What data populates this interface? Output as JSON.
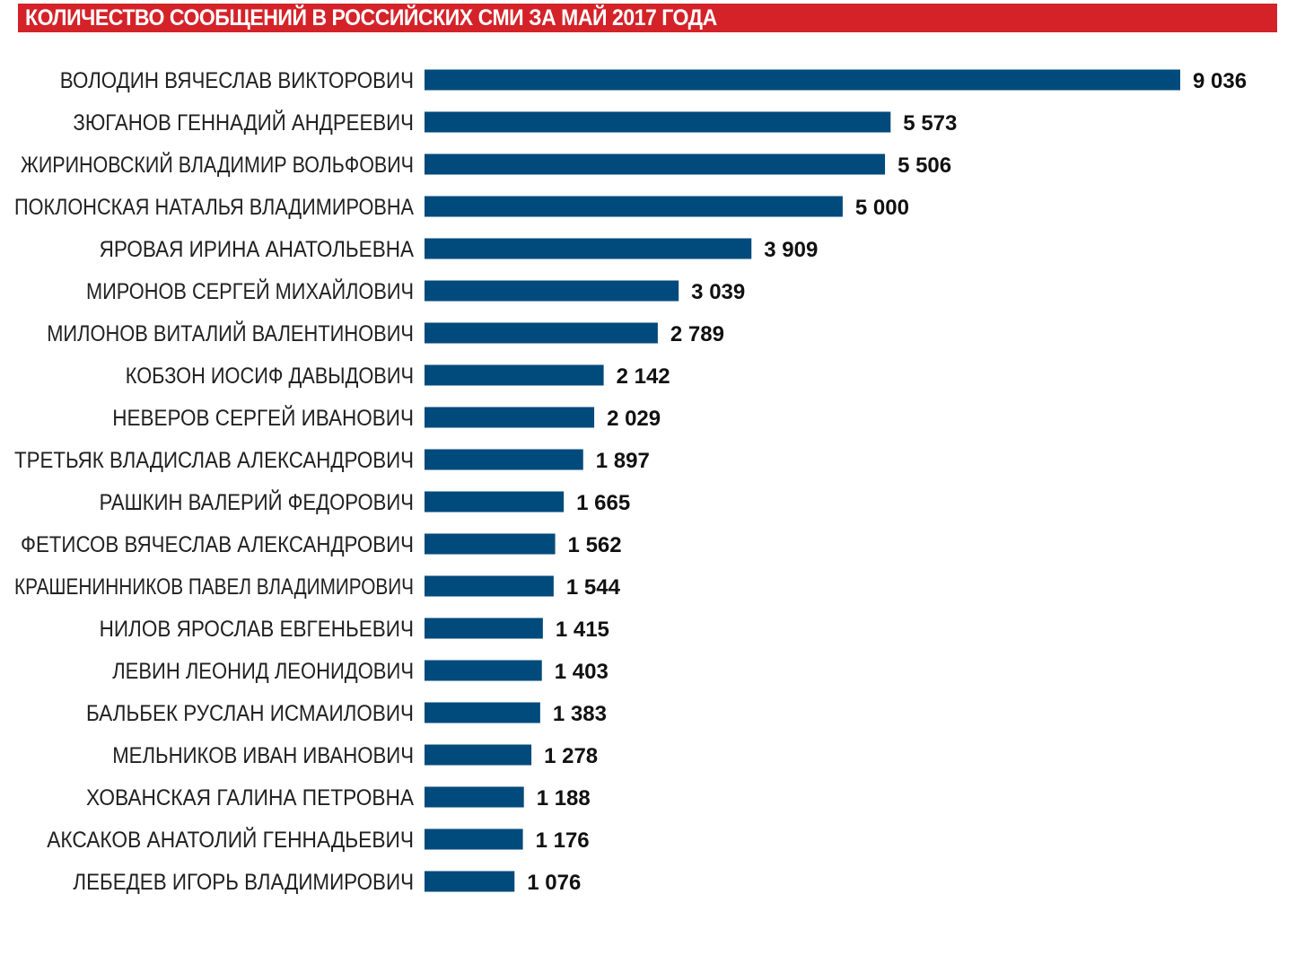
{
  "title": "КОЛИЧЕСТВО СООБЩЕНИЙ В РОССИЙСКИХ СМИ ЗА МАЙ 2017 ГОДА",
  "colors": {
    "title_bg": "#d42229",
    "bar": "#004a7c"
  },
  "chart_data": {
    "type": "bar",
    "orientation": "horizontal",
    "title": "КОЛИЧЕСТВО СООБЩЕНИЙ В РОССИЙСКИХ СМИ ЗА МАЙ 2017 ГОДА",
    "xlabel": "",
    "ylabel": "",
    "grid": false,
    "categories": [
      "ВОЛОДИН ВЯЧЕСЛАВ ВИКТОРОВИЧ",
      "ЗЮГАНОВ ГЕННАДИЙ АНДРЕЕВИЧ",
      "ЖИРИНОВСКИЙ ВЛАДИМИР ВОЛЬФОВИЧ",
      "ПОКЛОНСКАЯ НАТАЛЬЯ ВЛАДИМИРОВНА",
      "ЯРОВАЯ ИРИНА АНАТОЛЬЕВНА",
      "МИРОНОВ СЕРГЕЙ МИХАЙЛОВИЧ",
      "МИЛОНОВ ВИТАЛИЙ ВАЛЕНТИНОВИЧ",
      "КОБЗОН ИОСИФ ДАВЫДОВИЧ",
      "НЕВЕРОВ СЕРГЕЙ ИВАНОВИЧ",
      "ТРЕТЬЯК ВЛАДИСЛАВ АЛЕКСАНДРОВИЧ",
      "РАШКИН ВАЛЕРИЙ ФЕДОРОВИЧ",
      "ФЕТИСОВ ВЯЧЕСЛАВ АЛЕКСАНДРОВИЧ",
      "КРАШЕНИННИКОВ ПАВЕЛ ВЛАДИМИРОВИЧ",
      "НИЛОВ ЯРОСЛАВ ЕВГЕНЬЕВИЧ",
      "ЛЕВИН ЛЕОНИД ЛЕОНИДОВИЧ",
      "БАЛЬБЕК РУСЛАН ИСМАИЛОВИЧ",
      "МЕЛЬНИКОВ ИВАН ИВАНОВИЧ",
      "ХОВАНСКАЯ ГАЛИНА ПЕТРОВНА",
      "АКСАКОВ АНАТОЛИЙ ГЕННАДЬЕВИЧ",
      "ЛЕБЕДЕВ ИГОРЬ ВЛАДИМИРОВИЧ"
    ],
    "values": [
      9036,
      5573,
      5506,
      5000,
      3909,
      3039,
      2789,
      2142,
      2029,
      1897,
      1665,
      1562,
      1544,
      1415,
      1403,
      1383,
      1278,
      1188,
      1176,
      1076
    ],
    "value_labels": [
      "9 036",
      "5 573",
      "5 506",
      "5 000",
      "3 909",
      "3 039",
      "2 789",
      "2 142",
      "2 029",
      "1 897",
      "1 665",
      "1 562",
      "1 544",
      "1 415",
      "1 403",
      "1 383",
      "1 278",
      "1 188",
      "1 176",
      "1 076"
    ],
    "xlim": [
      0,
      9036
    ]
  }
}
